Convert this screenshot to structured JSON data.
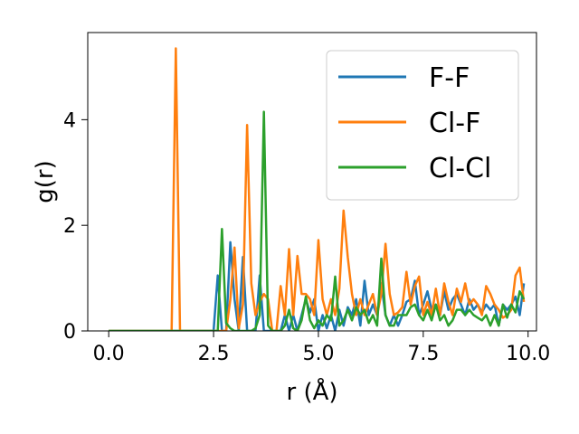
{
  "chart_data": {
    "type": "line",
    "title": "",
    "xlabel": "r (Å)",
    "ylabel": "g(r)",
    "xlim": [
      -0.5,
      10.2
    ],
    "ylim": [
      0,
      5.65
    ],
    "xticks": [
      0.0,
      2.5,
      5.0,
      7.5,
      10.0
    ],
    "xtick_labels": [
      "0.0",
      "2.5",
      "5.0",
      "7.5",
      "10.0"
    ],
    "yticks": [
      0,
      2,
      4
    ],
    "ytick_labels": [
      "0",
      "2",
      "4"
    ],
    "grid": false,
    "legend_position": "top-right",
    "series": [
      {
        "name": "F-F",
        "color": "#1f77b4",
        "points": [
          [
            0.0,
            0
          ],
          [
            2.5,
            0
          ],
          [
            2.6,
            1.05
          ],
          [
            2.7,
            0
          ],
          [
            2.8,
            0
          ],
          [
            2.9,
            1.68
          ],
          [
            3.0,
            0.6
          ],
          [
            3.1,
            0
          ],
          [
            3.2,
            1.4
          ],
          [
            3.3,
            0
          ],
          [
            3.4,
            0
          ],
          [
            3.5,
            0
          ],
          [
            3.6,
            1.05
          ],
          [
            3.7,
            0
          ],
          [
            3.8,
            0
          ],
          [
            3.9,
            0
          ],
          [
            4.0,
            0
          ],
          [
            4.1,
            0
          ],
          [
            4.2,
            0.3
          ],
          [
            4.3,
            0
          ],
          [
            4.4,
            0.3
          ],
          [
            4.5,
            0
          ],
          [
            4.6,
            0.3
          ],
          [
            4.7,
            0.6
          ],
          [
            4.8,
            0.35
          ],
          [
            4.9,
            0.6
          ],
          [
            5.0,
            0
          ],
          [
            5.1,
            0.3
          ],
          [
            5.2,
            0.05
          ],
          [
            5.3,
            0.3
          ],
          [
            5.4,
            0
          ],
          [
            5.5,
            0.4
          ],
          [
            5.6,
            0.1
          ],
          [
            5.7,
            0.45
          ],
          [
            5.8,
            0.3
          ],
          [
            5.9,
            0.6
          ],
          [
            6.0,
            0.1
          ],
          [
            6.1,
            0.95
          ],
          [
            6.2,
            0.3
          ],
          [
            6.3,
            0.5
          ],
          [
            6.4,
            0.3
          ],
          [
            6.5,
            0.9
          ],
          [
            6.6,
            0.3
          ],
          [
            6.7,
            0.1
          ],
          [
            6.8,
            0.3
          ],
          [
            6.9,
            0.1
          ],
          [
            7.0,
            0.3
          ],
          [
            7.1,
            0.55
          ],
          [
            7.2,
            0.6
          ],
          [
            7.3,
            0.95
          ],
          [
            7.4,
            0.3
          ],
          [
            7.5,
            0.5
          ],
          [
            7.6,
            0.75
          ],
          [
            7.7,
            0.4
          ],
          [
            7.8,
            0.5
          ],
          [
            7.9,
            0.3
          ],
          [
            8.0,
            0.75
          ],
          [
            8.1,
            0.4
          ],
          [
            8.2,
            0.6
          ],
          [
            8.3,
            0.7
          ],
          [
            8.4,
            0.5
          ],
          [
            8.5,
            0.3
          ],
          [
            8.6,
            0.6
          ],
          [
            8.7,
            0.4
          ],
          [
            8.8,
            0.5
          ],
          [
            8.9,
            0.35
          ],
          [
            9.0,
            0.5
          ],
          [
            9.1,
            0.4
          ],
          [
            9.2,
            0.5
          ],
          [
            9.3,
            0.1
          ],
          [
            9.4,
            0.5
          ],
          [
            9.5,
            0.4
          ],
          [
            9.6,
            0.5
          ],
          [
            9.7,
            0.65
          ],
          [
            9.8,
            0.3
          ],
          [
            9.9,
            0.9
          ]
        ]
      },
      {
        "name": "Cl-F",
        "color": "#ff7f0e",
        "points": [
          [
            0.0,
            0
          ],
          [
            1.5,
            0
          ],
          [
            1.6,
            5.35
          ],
          [
            1.7,
            0
          ],
          [
            2.8,
            0
          ],
          [
            2.9,
            0.6
          ],
          [
            3.0,
            1.58
          ],
          [
            3.1,
            0.05
          ],
          [
            3.2,
            0.5
          ],
          [
            3.3,
            3.9
          ],
          [
            3.4,
            0.9
          ],
          [
            3.5,
            0.3
          ],
          [
            3.6,
            0.55
          ],
          [
            3.7,
            0.7
          ],
          [
            3.8,
            0.6
          ],
          [
            3.9,
            0
          ],
          [
            4.0,
            0
          ],
          [
            4.1,
            0.85
          ],
          [
            4.2,
            0.3
          ],
          [
            4.3,
            1.55
          ],
          [
            4.4,
            0.3
          ],
          [
            4.5,
            1.42
          ],
          [
            4.6,
            0.7
          ],
          [
            4.7,
            0.7
          ],
          [
            4.8,
            0.6
          ],
          [
            4.9,
            0.3
          ],
          [
            5.0,
            1.72
          ],
          [
            5.1,
            0.6
          ],
          [
            5.2,
            0.3
          ],
          [
            5.3,
            0.6
          ],
          [
            5.4,
            0.3
          ],
          [
            5.5,
            0.8
          ],
          [
            5.6,
            2.28
          ],
          [
            5.7,
            1.4
          ],
          [
            5.8,
            0.7
          ],
          [
            5.9,
            0.3
          ],
          [
            6.0,
            0.6
          ],
          [
            6.1,
            0.3
          ],
          [
            6.2,
            0.5
          ],
          [
            6.3,
            0.7
          ],
          [
            6.4,
            0.3
          ],
          [
            6.5,
            0.7
          ],
          [
            6.6,
            1.65
          ],
          [
            6.7,
            0.7
          ],
          [
            6.8,
            0.3
          ],
          [
            6.9,
            0.35
          ],
          [
            7.0,
            0.45
          ],
          [
            7.1,
            1.12
          ],
          [
            7.2,
            0.5
          ],
          [
            7.3,
            0.85
          ],
          [
            7.4,
            1.03
          ],
          [
            7.5,
            0.3
          ],
          [
            7.6,
            0.55
          ],
          [
            7.7,
            0.3
          ],
          [
            7.8,
            0.8
          ],
          [
            7.9,
            0.3
          ],
          [
            8.0,
            0.9
          ],
          [
            8.1,
            0.55
          ],
          [
            8.2,
            0.3
          ],
          [
            8.3,
            0.8
          ],
          [
            8.4,
            0.55
          ],
          [
            8.5,
            0.9
          ],
          [
            8.6,
            0.5
          ],
          [
            8.7,
            0.6
          ],
          [
            8.8,
            0.5
          ],
          [
            8.9,
            0.3
          ],
          [
            9.0,
            0.85
          ],
          [
            9.1,
            0.7
          ],
          [
            9.2,
            0.5
          ],
          [
            9.3,
            0.4
          ],
          [
            9.4,
            0.25
          ],
          [
            9.5,
            0.3
          ],
          [
            9.6,
            0.4
          ],
          [
            9.7,
            1.05
          ],
          [
            9.8,
            1.2
          ],
          [
            9.9,
            0.55
          ]
        ]
      },
      {
        "name": "Cl-Cl",
        "color": "#2ca02c",
        "points": [
          [
            0.0,
            0
          ],
          [
            2.6,
            0
          ],
          [
            2.7,
            1.93
          ],
          [
            2.8,
            0.15
          ],
          [
            2.9,
            0.05
          ],
          [
            3.0,
            0
          ],
          [
            3.1,
            0
          ],
          [
            3.2,
            0
          ],
          [
            3.3,
            0
          ],
          [
            3.4,
            0
          ],
          [
            3.5,
            0.05
          ],
          [
            3.6,
            0.3
          ],
          [
            3.7,
            4.15
          ],
          [
            3.8,
            0.1
          ],
          [
            3.9,
            0
          ],
          [
            4.0,
            0
          ],
          [
            4.1,
            0
          ],
          [
            4.2,
            0.1
          ],
          [
            4.3,
            0.4
          ],
          [
            4.4,
            0.05
          ],
          [
            4.5,
            0
          ],
          [
            4.6,
            0.2
          ],
          [
            4.7,
            0.65
          ],
          [
            4.8,
            0.2
          ],
          [
            4.9,
            0.05
          ],
          [
            5.0,
            0.2
          ],
          [
            5.1,
            0.1
          ],
          [
            5.2,
            0.3
          ],
          [
            5.3,
            0.2
          ],
          [
            5.4,
            1.03
          ],
          [
            5.5,
            0.1
          ],
          [
            5.6,
            0.2
          ],
          [
            5.7,
            0.4
          ],
          [
            5.8,
            0.2
          ],
          [
            5.9,
            0.45
          ],
          [
            6.0,
            0.3
          ],
          [
            6.1,
            0.4
          ],
          [
            6.2,
            0.15
          ],
          [
            6.3,
            0.3
          ],
          [
            6.4,
            0.1
          ],
          [
            6.5,
            1.37
          ],
          [
            6.6,
            0.3
          ],
          [
            6.7,
            0.1
          ],
          [
            6.8,
            0.1
          ],
          [
            6.9,
            0.3
          ],
          [
            7.0,
            0.3
          ],
          [
            7.1,
            0.3
          ],
          [
            7.2,
            0.45
          ],
          [
            7.3,
            0.5
          ],
          [
            7.4,
            0.3
          ],
          [
            7.5,
            0.2
          ],
          [
            7.6,
            0.4
          ],
          [
            7.7,
            0.2
          ],
          [
            7.8,
            0.5
          ],
          [
            7.9,
            0.2
          ],
          [
            8.0,
            0.3
          ],
          [
            8.1,
            0.1
          ],
          [
            8.2,
            0.2
          ],
          [
            8.3,
            0.4
          ],
          [
            8.4,
            0.4
          ],
          [
            8.5,
            0.3
          ],
          [
            8.6,
            0.4
          ],
          [
            8.7,
            0.3
          ],
          [
            8.8,
            0.25
          ],
          [
            8.9,
            0.2
          ],
          [
            9.0,
            0.3
          ],
          [
            9.1,
            0.1
          ],
          [
            9.2,
            0.3
          ],
          [
            9.3,
            0.1
          ],
          [
            9.4,
            0.5
          ],
          [
            9.5,
            0.25
          ],
          [
            9.6,
            0.5
          ],
          [
            9.7,
            0.35
          ],
          [
            9.8,
            0.75
          ],
          [
            9.9,
            0.6
          ]
        ]
      }
    ]
  }
}
